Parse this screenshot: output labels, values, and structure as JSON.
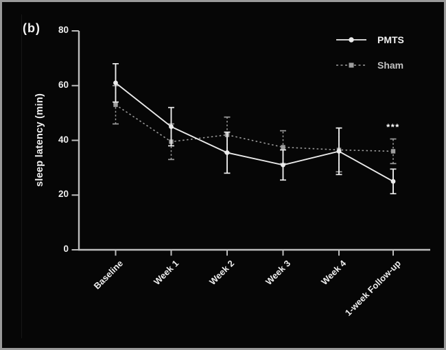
{
  "figure": {
    "panel_label": "(b)"
  },
  "chart_data": {
    "type": "line",
    "title": "",
    "xlabel": "",
    "ylabel": "sleep latency (min)",
    "ylim": [
      0,
      80
    ],
    "yticks": [
      0,
      20,
      40,
      60,
      80
    ],
    "categories": [
      "Baseline",
      "Week 1",
      "Week 2",
      "Week 3",
      "Week 4",
      "1-week Follow-up"
    ],
    "grid": false,
    "legend_position": "upper right",
    "series": [
      {
        "name": "PMTS",
        "style": "solid",
        "marker": "circle",
        "color": "#ebebeb",
        "values": [
          61,
          45,
          35.5,
          31,
          36,
          25
        ],
        "errors": [
          7,
          7,
          7.5,
          5.5,
          8.5,
          4.5
        ]
      },
      {
        "name": "Sham",
        "style": "dashed",
        "marker": "square",
        "color": "#9d9d9d",
        "values": [
          53,
          39.5,
          42,
          37.5,
          36.5,
          36
        ],
        "errors": [
          7,
          6.5,
          6.5,
          6,
          8,
          4.5
        ]
      }
    ],
    "annotations": [
      {
        "text": "***",
        "category": "1-week Follow-up",
        "series": "Sham",
        "y": 45
      }
    ]
  },
  "colors": {
    "background": "#060606",
    "border": "#9a9a9a",
    "axis": "#bdbdbd",
    "text": "#ededed"
  }
}
